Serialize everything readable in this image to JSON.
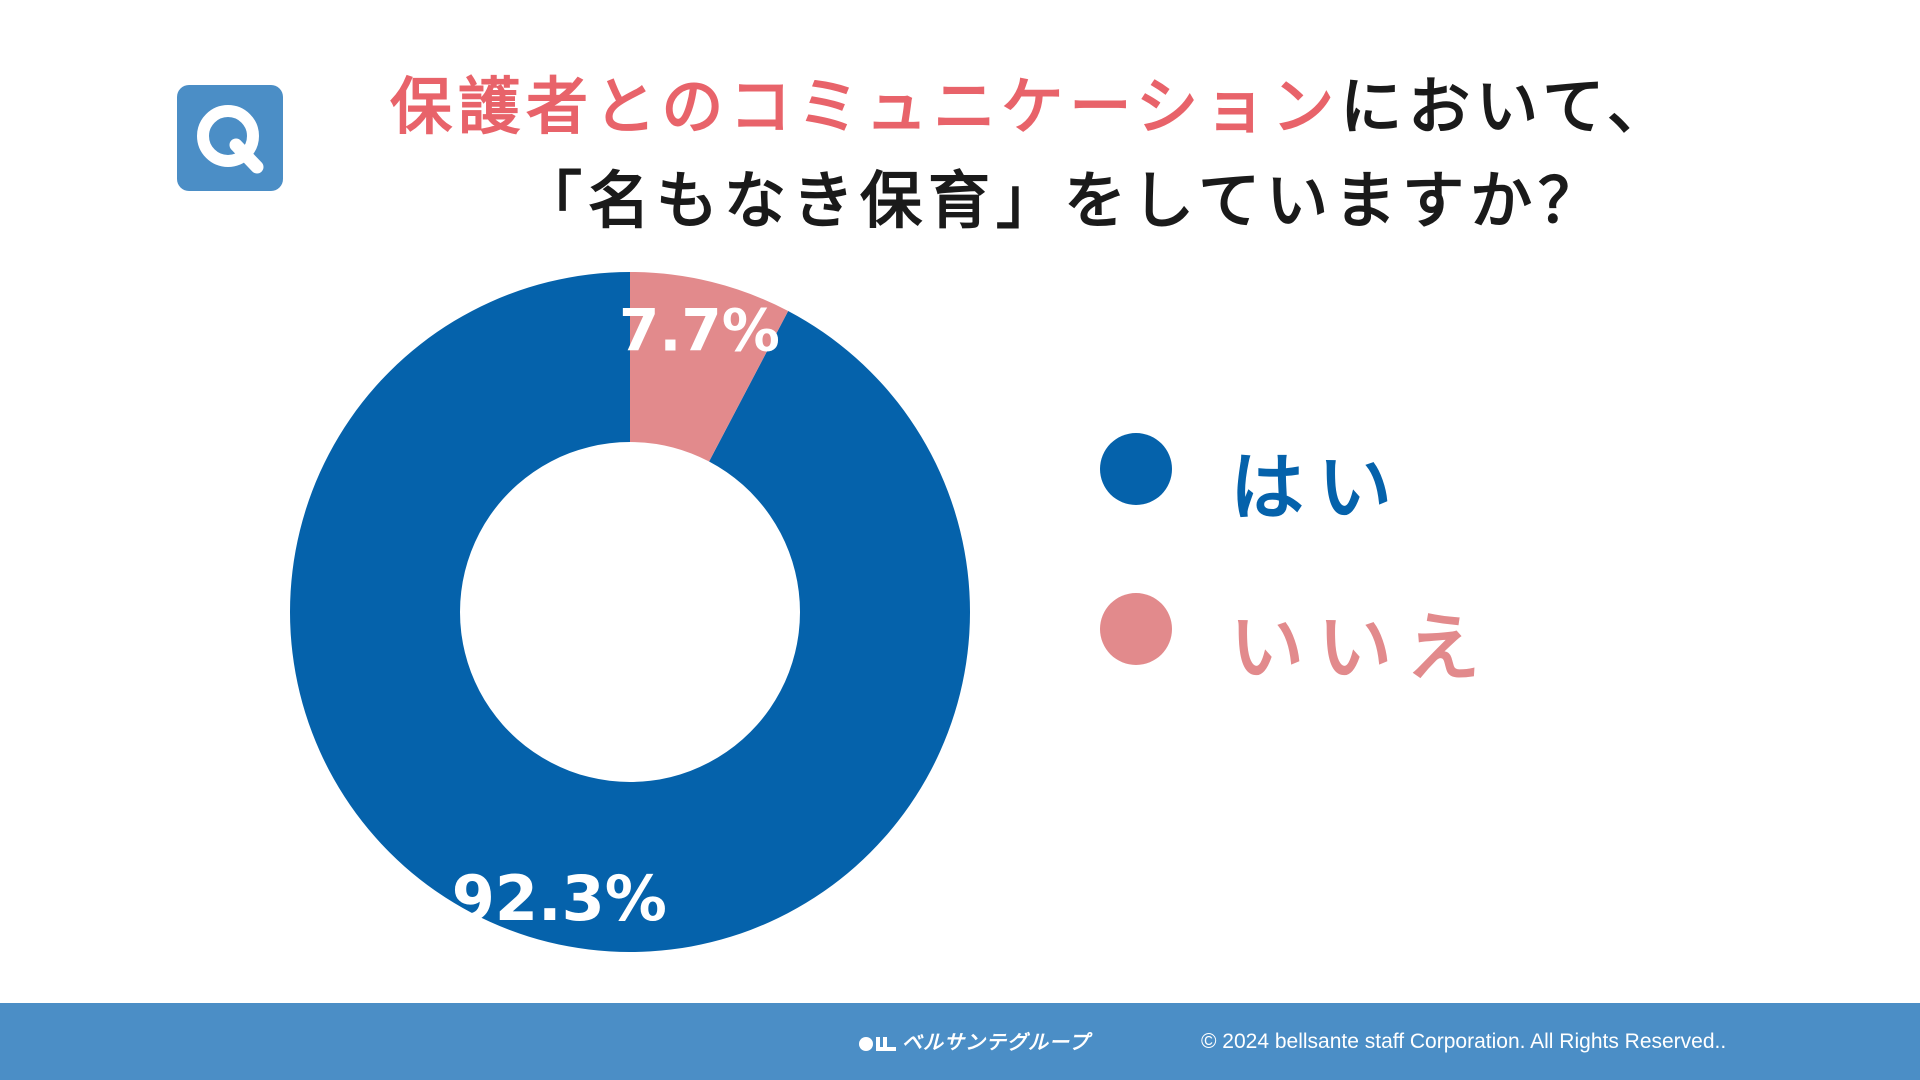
{
  "question": {
    "badge_letter": "Q",
    "line1_highlight": "保護者とのコミュニケーション",
    "line1_rest": "において、",
    "line2": "「名もなき保育」をしていますか？"
  },
  "colors": {
    "yes": "#0562ab",
    "no": "#e28a8c",
    "highlight": "#e8636a",
    "footer": "#4b8ec6"
  },
  "chart_data": {
    "type": "pie",
    "donut": true,
    "start": "top",
    "direction": "counterclockwise",
    "categories": [
      "はい",
      "いいえ"
    ],
    "values": [
      92.3,
      7.7
    ],
    "labels": [
      "92.3%",
      "7.7%"
    ],
    "legend_position": "right"
  },
  "legend": [
    {
      "label": "はい",
      "color": "#0562ab"
    },
    {
      "label": "いいえ",
      "color": "#e28a8c"
    }
  ],
  "footer": {
    "logo_text": "ベルサンテグループ",
    "copyright": "© 2024 bellsante staff Corporation. All Rights Reserved.."
  }
}
